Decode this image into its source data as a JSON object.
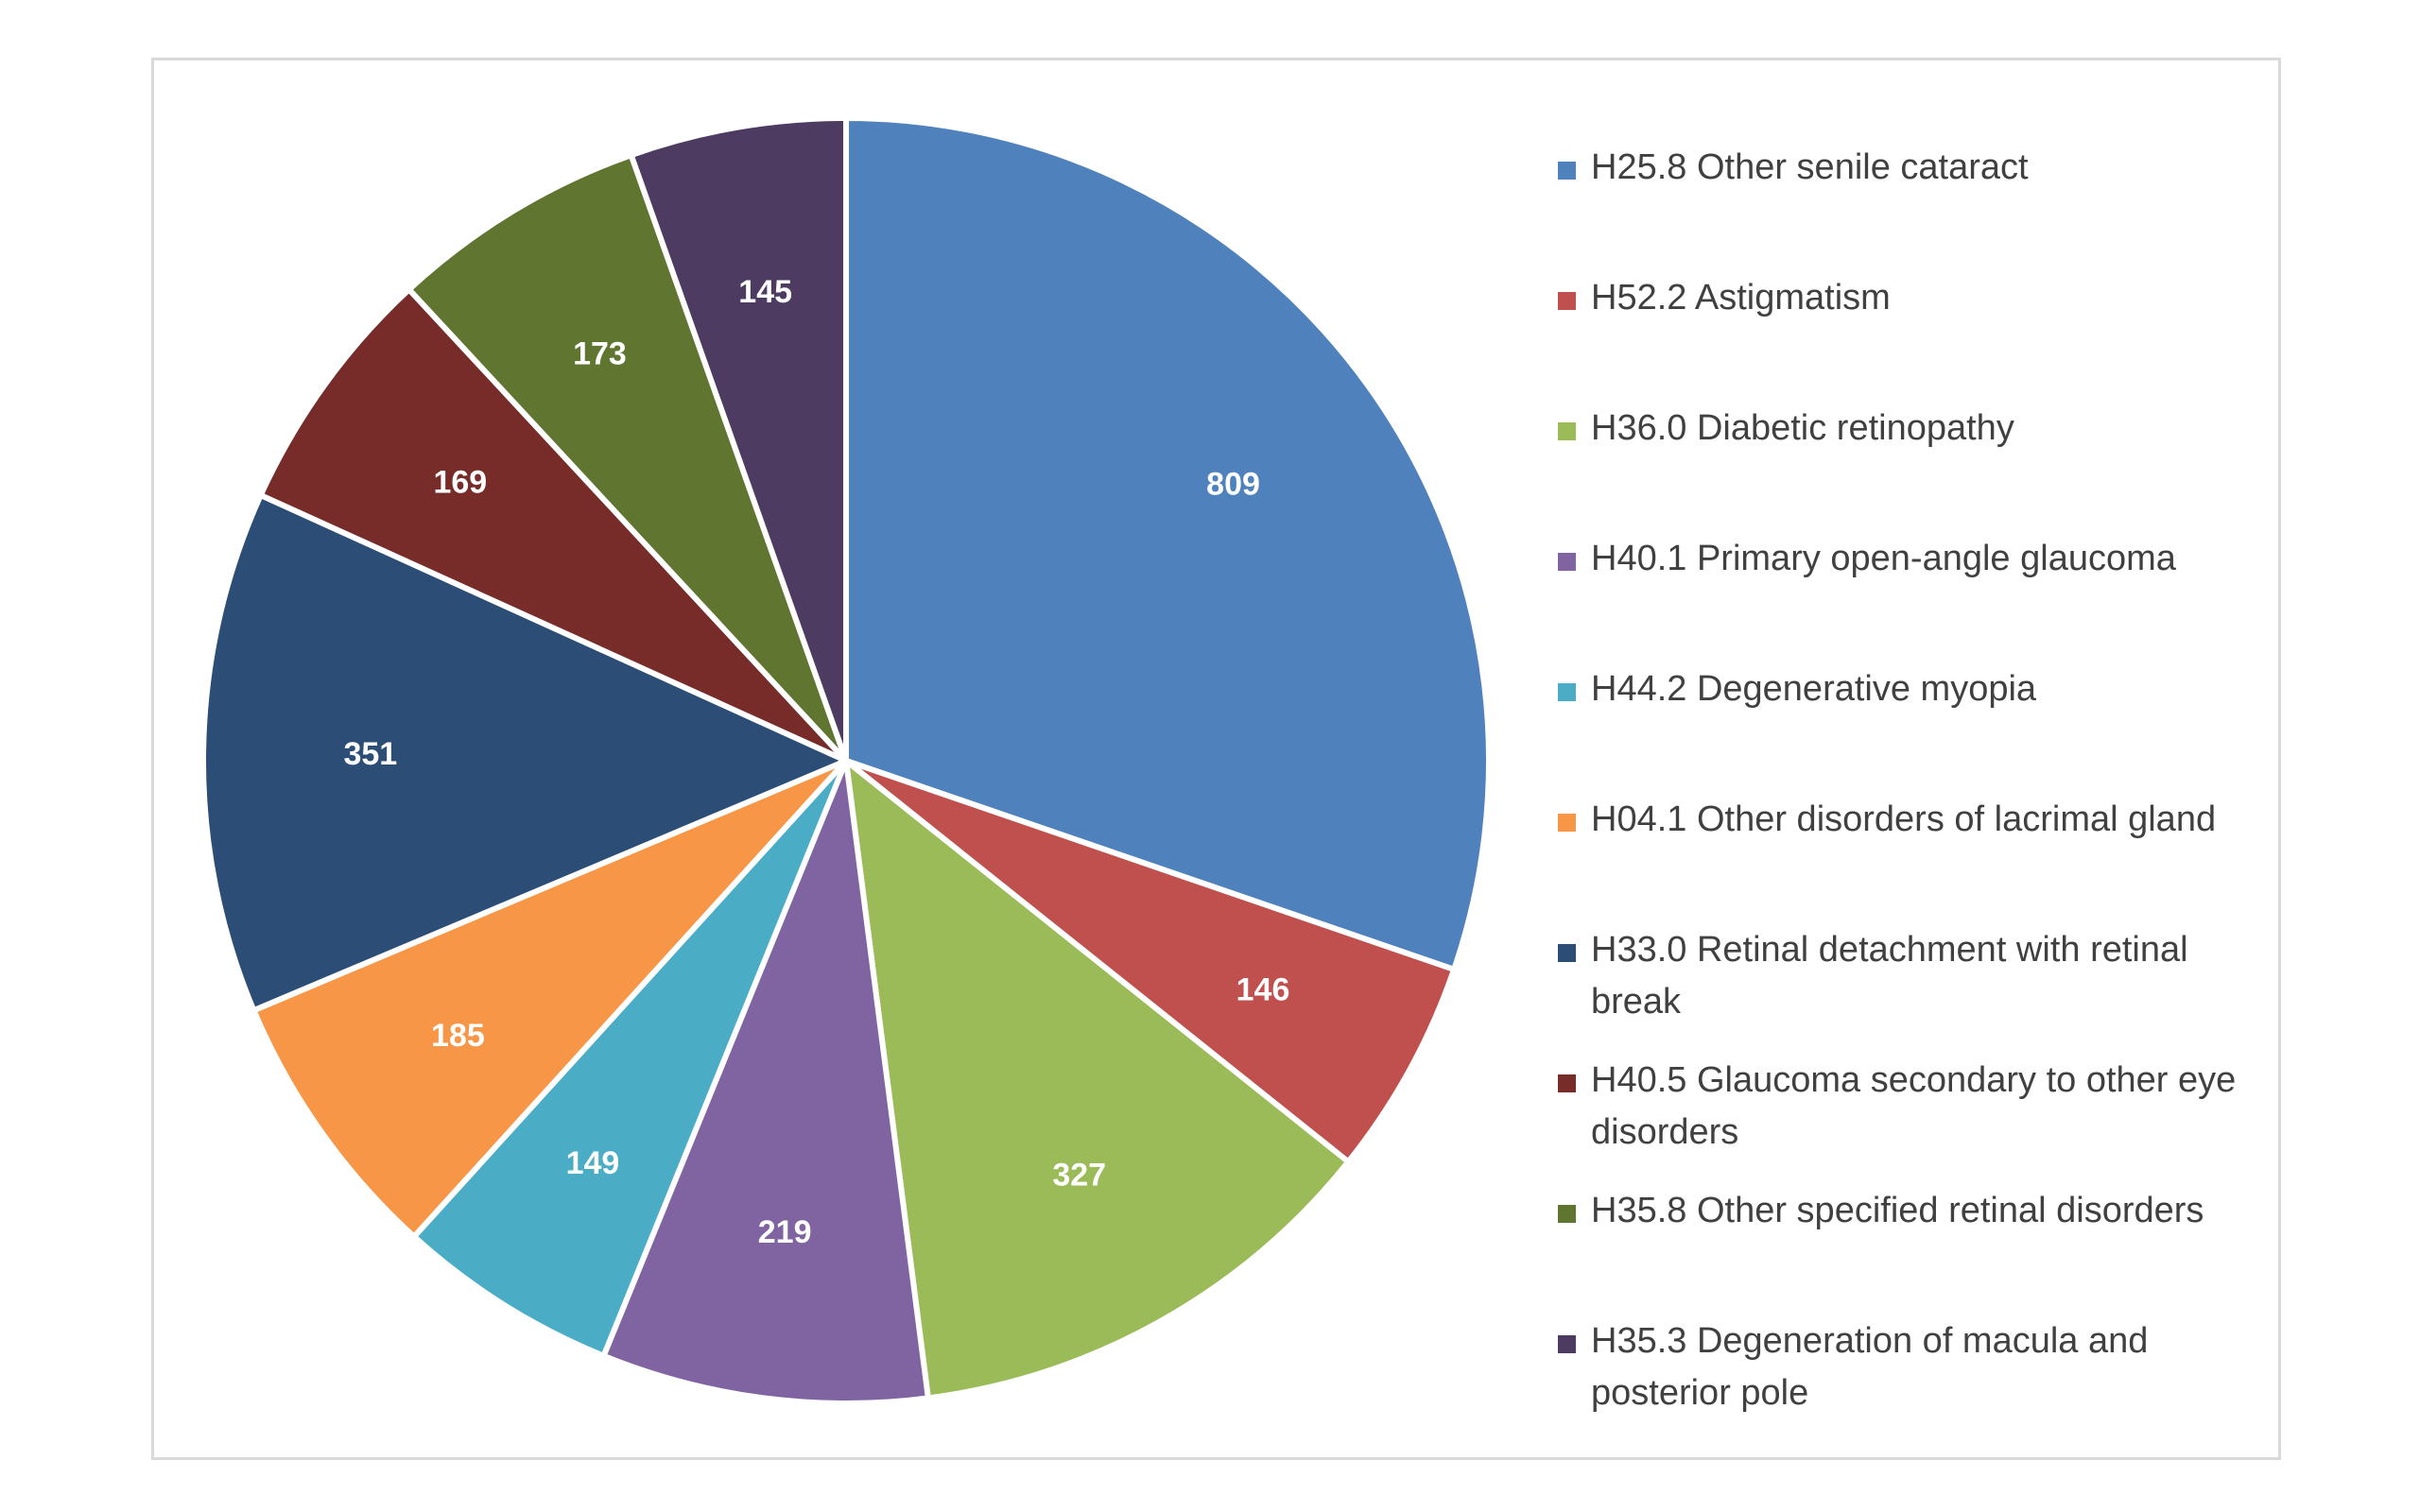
{
  "chart_data": {
    "type": "pie",
    "title": "",
    "categories": [
      "H25.8 Other senile cataract",
      "H52.2 Astigmatism",
      "H36.0 Diabetic retinopathy",
      "H40.1 Primary open-angle glaucoma",
      "H44.2 Degenerative myopia",
      "H04.1 Other disorders of lacrimal gland",
      "H33.0 Retinal detachment with retinal break",
      "H40.5 Glaucoma secondary to other eye disorders",
      "H35.8 Other specified retinal disorders",
      "H35.3 Degeneration of macula and posterior pole"
    ],
    "values": [
      809,
      146,
      327,
      219,
      149,
      185,
      351,
      169,
      173,
      145
    ],
    "data_labels": [
      "809",
      "146",
      "327",
      "219",
      "149",
      "185",
      "351",
      "169",
      "173",
      "145"
    ],
    "colors": [
      "#4F81BD",
      "#C0504D",
      "#9BBB59",
      "#8064A2",
      "#4BACC6",
      "#F79646",
      "#2C4D75",
      "#772C2A",
      "#5F7530",
      "#4D3B62"
    ],
    "start_angle": "12 o'clock",
    "direction": "clockwise",
    "legend": "right"
  }
}
